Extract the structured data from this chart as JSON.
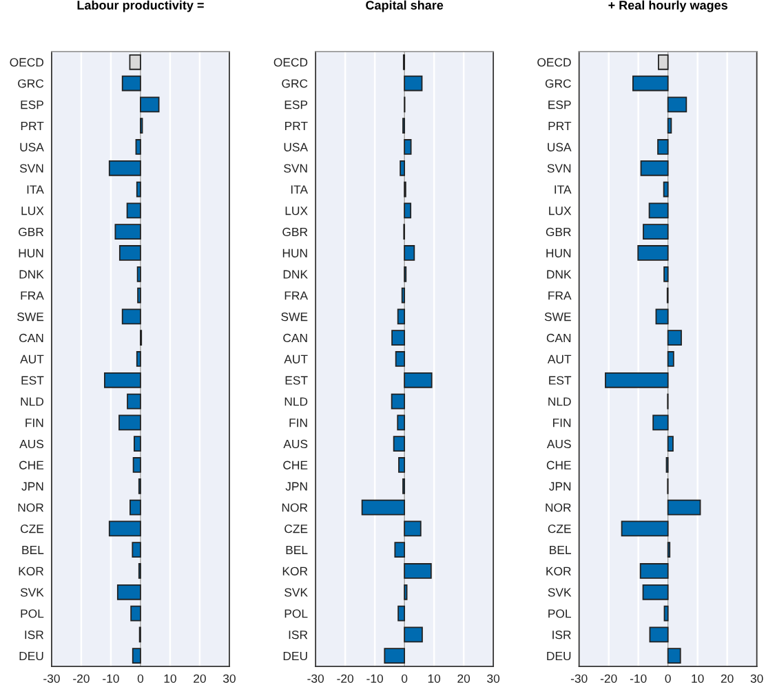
{
  "chart_data": [
    {
      "type": "bar",
      "orientation": "horizontal",
      "title": "Labour productivity =",
      "grid": "x",
      "xlim": [
        -30,
        30
      ],
      "xticks": [
        -30,
        -20,
        -10,
        0,
        10,
        20,
        30
      ],
      "categories": [
        "OECD",
        "GRC",
        "ESP",
        "PRT",
        "USA",
        "SVN",
        "ITA",
        "LUX",
        "GBR",
        "HUN",
        "DNK",
        "FRA",
        "SWE",
        "CAN",
        "AUT",
        "EST",
        "NLD",
        "FIN",
        "AUS",
        "CHE",
        "JPN",
        "NOR",
        "CZE",
        "BEL",
        "KOR",
        "SVK",
        "POL",
        "ISR",
        "DEU"
      ],
      "values": [
        -3.6,
        -6.1,
        6.2,
        0.6,
        -1.5,
        -10.5,
        -1.2,
        -4.5,
        -8.5,
        -7.0,
        -1.0,
        -0.9,
        -6.1,
        0.3,
        -1.2,
        -12.1,
        -4.4,
        -7.2,
        -2.1,
        -2.4,
        -0.5,
        -3.5,
        -10.5,
        -2.7,
        -0.5,
        -7.7,
        -3.2,
        -0.3,
        -2.6
      ],
      "colors": [
        "#d9d9d9",
        "#006bb0",
        "#006bb0",
        "#006bb0",
        "#006bb0",
        "#006bb0",
        "#006bb0",
        "#006bb0",
        "#006bb0",
        "#006bb0",
        "#006bb0",
        "#006bb0",
        "#006bb0",
        "#006bb0",
        "#006bb0",
        "#006bb0",
        "#006bb0",
        "#006bb0",
        "#006bb0",
        "#006bb0",
        "#006bb0",
        "#006bb0",
        "#006bb0",
        "#006bb0",
        "#006bb0",
        "#006bb0",
        "#006bb0",
        "#006bb0",
        "#006bb0"
      ]
    },
    {
      "type": "bar",
      "orientation": "horizontal",
      "title": "Capital share",
      "grid": "x",
      "xlim": [
        -30,
        30
      ],
      "xticks": [
        -30,
        -20,
        -10,
        0,
        10,
        20,
        30
      ],
      "categories": [
        "OECD",
        "GRC",
        "ESP",
        "PRT",
        "USA",
        "SVN",
        "ITA",
        "LUX",
        "GBR",
        "HUN",
        "DNK",
        "FRA",
        "SWE",
        "CAN",
        "AUT",
        "EST",
        "NLD",
        "FIN",
        "AUS",
        "CHE",
        "JPN",
        "NOR",
        "CZE",
        "BEL",
        "KOR",
        "SVK",
        "POL",
        "ISR",
        "DEU"
      ],
      "values": [
        -0.3,
        5.9,
        0.1,
        -0.5,
        2.2,
        -1.4,
        0.4,
        2.1,
        -0.2,
        3.3,
        0.5,
        -0.8,
        -2.2,
        -4.2,
        -2.9,
        9.2,
        -4.3,
        -2.3,
        -3.6,
        -1.9,
        -0.5,
        -14.3,
        5.5,
        -3.2,
        9.0,
        0.8,
        -2.1,
        6.0,
        -6.7
      ],
      "colors": [
        "#d9d9d9",
        "#006bb0",
        "#006bb0",
        "#006bb0",
        "#006bb0",
        "#006bb0",
        "#006bb0",
        "#006bb0",
        "#006bb0",
        "#006bb0",
        "#006bb0",
        "#006bb0",
        "#006bb0",
        "#006bb0",
        "#006bb0",
        "#006bb0",
        "#006bb0",
        "#006bb0",
        "#006bb0",
        "#006bb0",
        "#006bb0",
        "#006bb0",
        "#006bb0",
        "#006bb0",
        "#006bb0",
        "#006bb0",
        "#006bb0",
        "#006bb0",
        "#006bb0"
      ]
    },
    {
      "type": "bar",
      "orientation": "horizontal",
      "title": "+ Real hourly wages",
      "grid": "x",
      "xlim": [
        -30,
        30
      ],
      "xticks": [
        -30,
        -20,
        -10,
        0,
        10,
        20,
        30
      ],
      "categories": [
        "OECD",
        "GRC",
        "ESP",
        "PRT",
        "USA",
        "SVN",
        "ITA",
        "LUX",
        "GBR",
        "HUN",
        "DNK",
        "FRA",
        "SWE",
        "CAN",
        "AUT",
        "EST",
        "NLD",
        "FIN",
        "AUS",
        "CHE",
        "JPN",
        "NOR",
        "CZE",
        "BEL",
        "KOR",
        "SVK",
        "POL",
        "ISR",
        "DEU"
      ],
      "values": [
        -3.2,
        -11.8,
        6.2,
        1.1,
        -3.4,
        -9.1,
        -1.4,
        -6.3,
        -8.3,
        -10.1,
        -1.3,
        -0.2,
        -4.0,
        4.5,
        1.9,
        -21.1,
        -0.1,
        -5.0,
        1.7,
        -0.5,
        -0.1,
        10.9,
        -15.6,
        0.6,
        -9.3,
        -8.4,
        -1.2,
        -6.1,
        4.2
      ],
      "colors": [
        "#d9d9d9",
        "#006bb0",
        "#006bb0",
        "#006bb0",
        "#006bb0",
        "#006bb0",
        "#006bb0",
        "#006bb0",
        "#006bb0",
        "#006bb0",
        "#006bb0",
        "#006bb0",
        "#006bb0",
        "#006bb0",
        "#006bb0",
        "#006bb0",
        "#006bb0",
        "#006bb0",
        "#006bb0",
        "#006bb0",
        "#006bb0",
        "#006bb0",
        "#006bb0",
        "#006bb0",
        "#006bb0",
        "#006bb0",
        "#006bb0",
        "#006bb0",
        "#006bb0"
      ]
    }
  ]
}
